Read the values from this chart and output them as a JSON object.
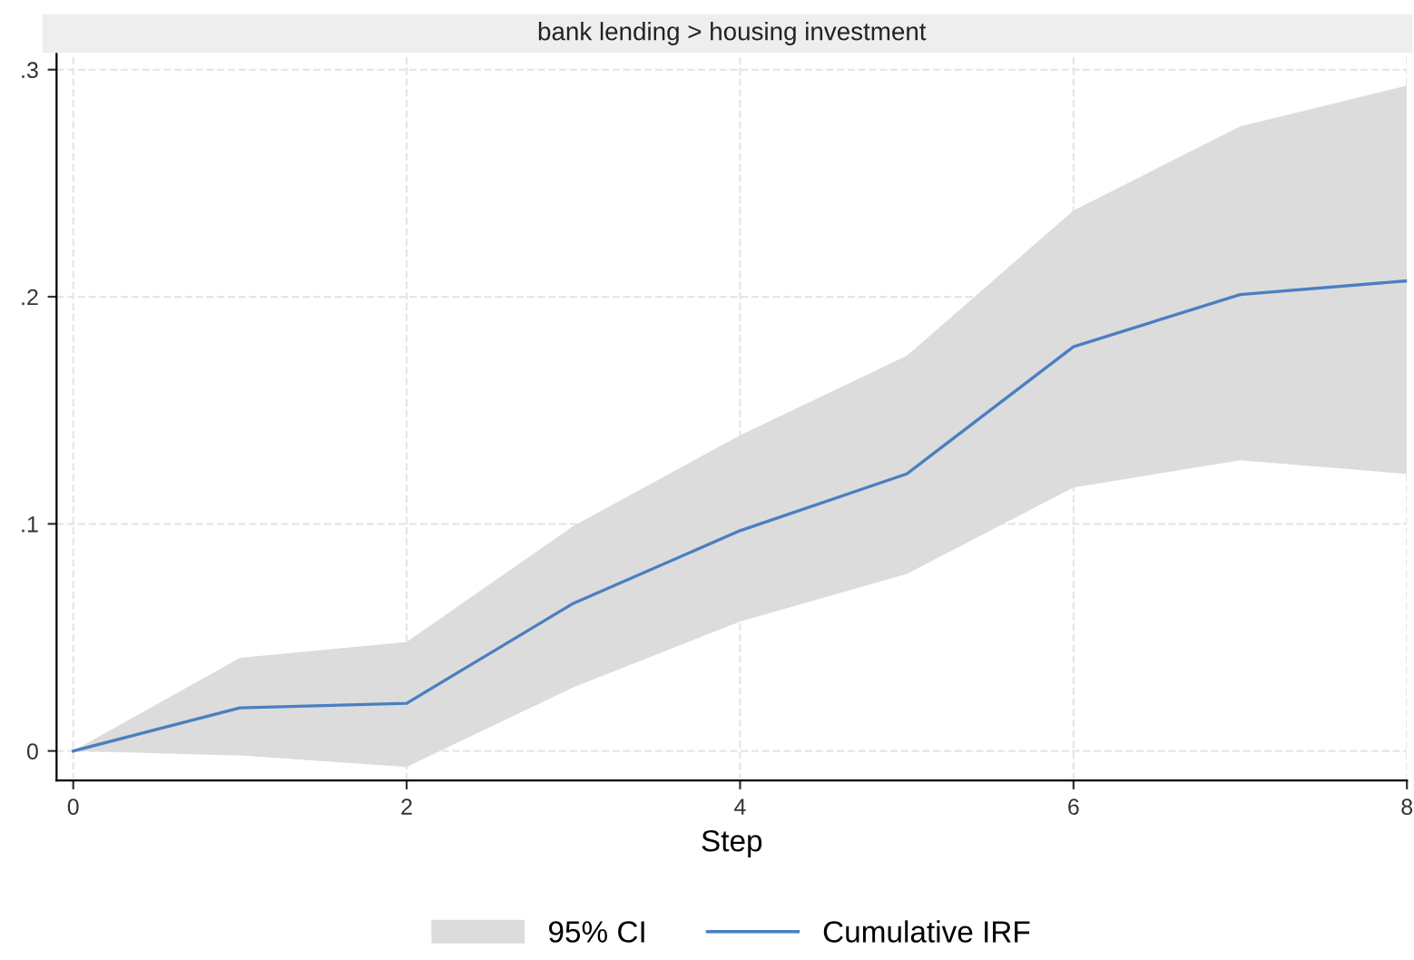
{
  "chart_data": {
    "type": "line",
    "title": "bank lending > housing investment",
    "xlabel": "Step",
    "x": [
      0,
      1,
      2,
      3,
      4,
      5,
      6,
      7,
      8
    ],
    "series": [
      {
        "name": "Cumulative IRF",
        "color": "#4a7fc1",
        "values": [
          0,
          0.019,
          0.021,
          0.065,
          0.097,
          0.122,
          0.178,
          0.201,
          0.207
        ],
        "lower": [
          0,
          -0.002,
          -0.007,
          0.028,
          0.057,
          0.078,
          0.116,
          0.128,
          0.122
        ],
        "upper": [
          0,
          0.041,
          0.048,
          0.099,
          0.139,
          0.174,
          0.238,
          0.275,
          0.293
        ]
      }
    ],
    "annotations": [
      "95% CI"
    ],
    "xlim": [
      -0.1,
      8
    ],
    "ylim": [
      -0.013,
      0.307
    ],
    "xticks": [
      0,
      2,
      4,
      6,
      8
    ],
    "yticks": [
      {
        "value": 0,
        "label": "0"
      },
      {
        "value": 0.1,
        "label": ".1"
      },
      {
        "value": 0.2,
        "label": ".2"
      },
      {
        "value": 0.3,
        "label": ".3"
      }
    ],
    "grid": true,
    "legend": "bottom",
    "marker": "none",
    "line_style": "solid"
  }
}
